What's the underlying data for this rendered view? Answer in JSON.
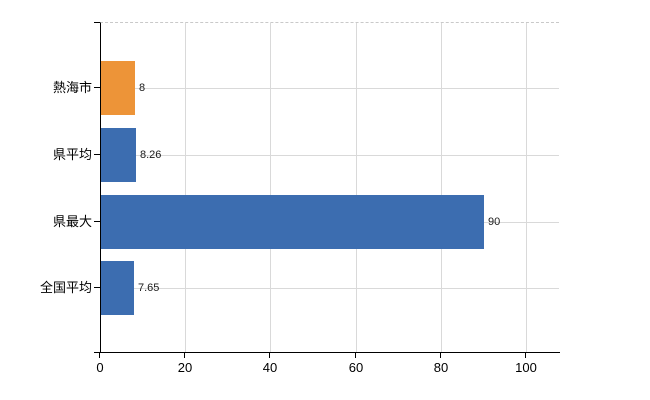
{
  "chart_data": {
    "type": "bar",
    "orientation": "horizontal",
    "title": "",
    "xlabel": "",
    "ylabel": "",
    "categories": [
      "熱海市",
      "県平均",
      "県最大",
      "全国平均"
    ],
    "values": [
      8,
      8.26,
      90,
      7.65
    ],
    "value_labels": [
      "8",
      "8.26",
      "90",
      "7.65"
    ],
    "bar_colors": [
      "#ED9438",
      "#3C6DB0",
      "#3C6DB0",
      "#3C6DB0"
    ],
    "highlight_color": "#ED9438",
    "base_color": "#3C6DB0",
    "x_ticks": [
      0,
      20,
      40,
      60,
      80,
      100
    ],
    "x_tick_labels": [
      "0",
      "20",
      "40",
      "60",
      "80",
      "100"
    ],
    "xlim": [
      0,
      107.7
    ],
    "grid": "both",
    "legend": "none",
    "gridline_color": "#D9D9D9",
    "axis_color": "#000000",
    "text_color": "#1A1A1A",
    "background": "#FFFFFF"
  }
}
